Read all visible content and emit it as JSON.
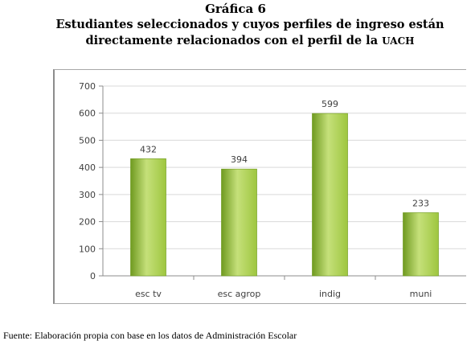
{
  "figure_label": "Gráfica 6",
  "title_main": "Estudiantes seleccionados y cuyos perfiles de ingreso están directamente relacionados con el perfil de la",
  "title_abbr": "UACH",
  "source": "Fuente: Elaboración propia con base en los datos de Administración Escolar",
  "colors": {
    "bar_light": "#c5e07a",
    "bar_mid": "#9ec63f",
    "bar_dark": "#6f9a20",
    "grid": "#d9d9d9",
    "axis": "#8c8c8c",
    "text": "#404040"
  },
  "chart_data": {
    "type": "bar",
    "categories": [
      "esc tv",
      "esc agrop",
      "indig",
      "muni"
    ],
    "values": [
      432,
      394,
      599,
      233
    ],
    "data_labels": [
      "432",
      "394",
      "599",
      "233"
    ],
    "ylim": [
      0,
      700
    ],
    "yticks": [
      0,
      100,
      200,
      300,
      400,
      500,
      600,
      700
    ],
    "grid": true,
    "legend": "none",
    "xlabel": "",
    "ylabel": ""
  }
}
